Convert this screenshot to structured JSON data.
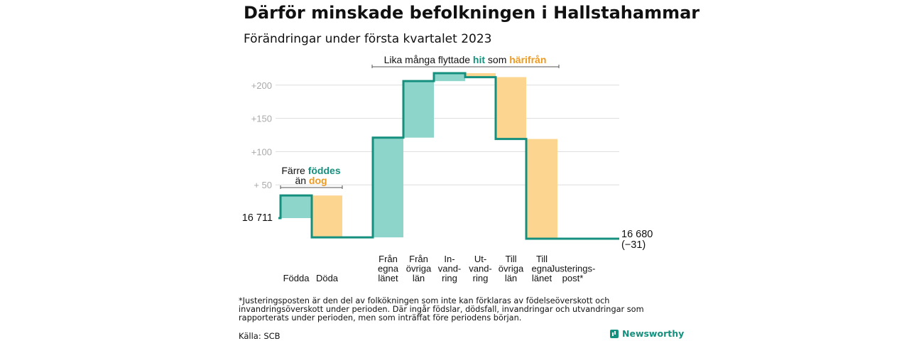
{
  "title": "Därför minskade befolkningen i Hallstahammar",
  "subtitle": "Förändringar under första kvartalet 2023",
  "footnote": "*Justeringsposten är den del av folkökningen som inte kan förklaras av födelseöverskott och invandringsöverskott under perioden. Där ingår födslar, dödsfall, invandringar och utvandringar som rapporterats under perioden, men som inträffat före periodens början.",
  "source": "Källa: SCB",
  "brand": "Newsworthy",
  "colors": {
    "inflow": "#8dd5cb",
    "outflow": "#fcd591",
    "line": "#16907e",
    "orange_text": "#ee9a1f",
    "grid": "#dddddd",
    "tick": "#aaaaaa"
  },
  "chart_data": {
    "type": "bar",
    "subtype": "waterfall",
    "baseline": 16711,
    "start_label": "16 711",
    "end_label": "16 680",
    "end_change_label": "(−31)",
    "ylim": [
      -15,
      228
    ],
    "yticks": [
      {
        "value": 50,
        "label": "+ 50"
      },
      {
        "value": 100,
        "label": "+100"
      },
      {
        "value": 150,
        "label": "+150"
      },
      {
        "value": 200,
        "label": "+200"
      }
    ],
    "grid": true,
    "steps": [
      {
        "label": [
          "Födda"
        ],
        "change": 34,
        "kind": "in"
      },
      {
        "label": [
          "Döda"
        ],
        "change": -63,
        "kind": "out"
      },
      {
        "label": [
          "Från",
          "egna",
          "länet"
        ],
        "change": 150,
        "kind": "in"
      },
      {
        "label": [
          "Från",
          "övriga",
          "län"
        ],
        "change": 85,
        "kind": "in"
      },
      {
        "label": [
          "In-",
          "vand-",
          "ring"
        ],
        "change": 12,
        "kind": "in"
      },
      {
        "label": [
          "Ut-",
          "vand-",
          "ring"
        ],
        "change": -6,
        "kind": "out"
      },
      {
        "label": [
          "Till",
          "övriga",
          "län"
        ],
        "change": -93,
        "kind": "out"
      },
      {
        "label": [
          "Till",
          "egna",
          "länet"
        ],
        "change": -150,
        "kind": "out"
      },
      {
        "label": [
          "Justerings-",
          "post*"
        ],
        "change": 0,
        "kind": "in"
      }
    ],
    "annotations": [
      {
        "parts": [
          {
            "text": "Färre ",
            "style": "plain"
          },
          {
            "text": "föddes",
            "style": "in"
          }
        ],
        "parts2": [
          {
            "text": "än ",
            "style": "plain"
          },
          {
            "text": "dog",
            "style": "out"
          }
        ]
      },
      {
        "parts": [
          {
            "text": "Lika många flyttade ",
            "style": "plain"
          },
          {
            "text": "hit",
            "style": "in"
          },
          {
            "text": " som ",
            "style": "plain"
          },
          {
            "text": "härifrån",
            "style": "out"
          }
        ]
      }
    ]
  }
}
